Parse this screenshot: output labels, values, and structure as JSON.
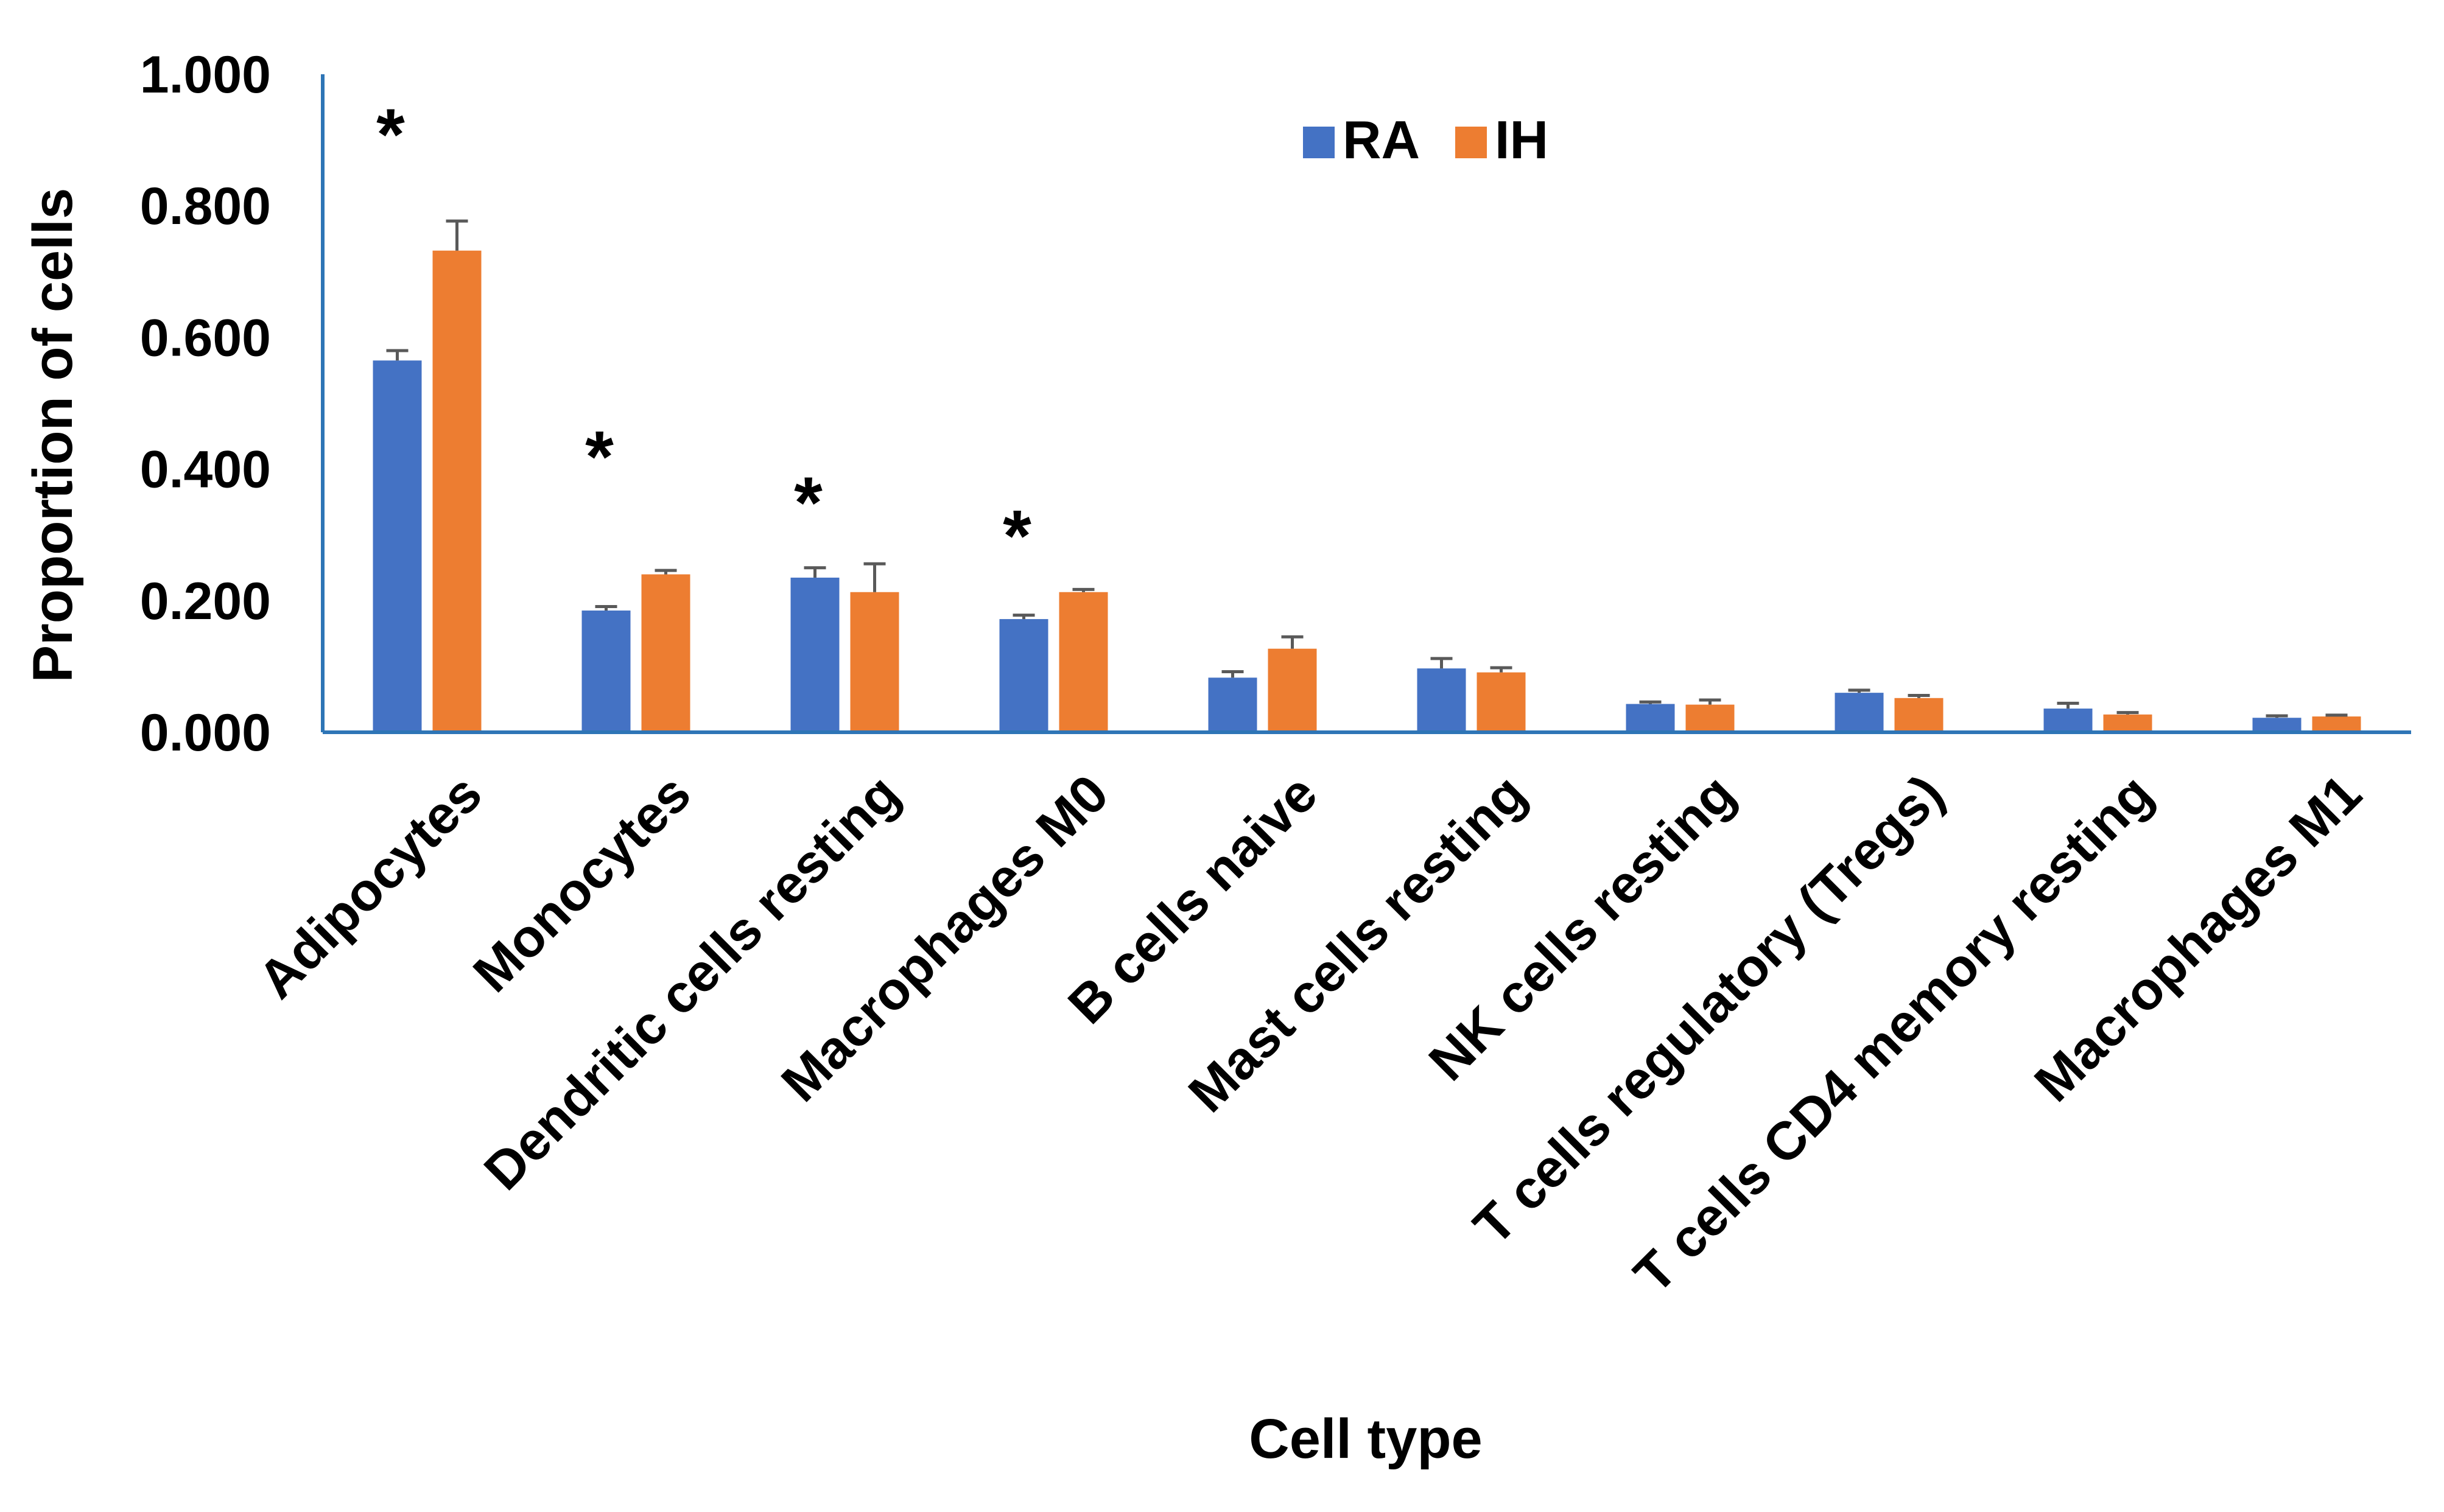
{
  "chart_data": {
    "type": "bar",
    "title": "",
    "xlabel": "Cell type",
    "ylabel": "Proportion of cells",
    "ylim": [
      0,
      1
    ],
    "yticks": [
      "0.000",
      "0.200",
      "0.400",
      "0.600",
      "0.800",
      "1.000"
    ],
    "categories": [
      "Adipocytes",
      "Monocytes",
      "Dendritic cells resting",
      "Macrophages M0",
      "B cells naive",
      "Mast cells resting",
      "NK cells resting",
      "T cells regulatory (Tregs)",
      "T cells CD4 memory resting",
      "Macrophages M1"
    ],
    "series": [
      {
        "name": "RA",
        "color": "#4472C4",
        "values": [
          0.565,
          0.185,
          0.235,
          0.172,
          0.083,
          0.097,
          0.043,
          0.06,
          0.036,
          0.022
        ],
        "errors": [
          0.015,
          0.006,
          0.015,
          0.006,
          0.009,
          0.015,
          0.003,
          0.004,
          0.008,
          0.003
        ]
      },
      {
        "name": "IH",
        "color": "#ED7D31",
        "values": [
          0.732,
          0.24,
          0.213,
          0.213,
          0.127,
          0.091,
          0.042,
          0.052,
          0.027,
          0.024
        ],
        "errors": [
          0.045,
          0.006,
          0.043,
          0.004,
          0.018,
          0.007,
          0.007,
          0.004,
          0.003,
          0.002
        ]
      }
    ],
    "significance": [
      {
        "category": "Adipocytes",
        "label": "*",
        "value": 0.94
      },
      {
        "category": "Monocytes",
        "label": "*",
        "value": 0.45
      },
      {
        "category": "Dendritic cells resting",
        "label": "*",
        "value": 0.38
      },
      {
        "category": "Macrophages M0",
        "label": "*",
        "value": 0.33
      }
    ],
    "legend_position": "top-center",
    "axis_color": "#2E75B6",
    "error_bar_color": "#595959"
  }
}
